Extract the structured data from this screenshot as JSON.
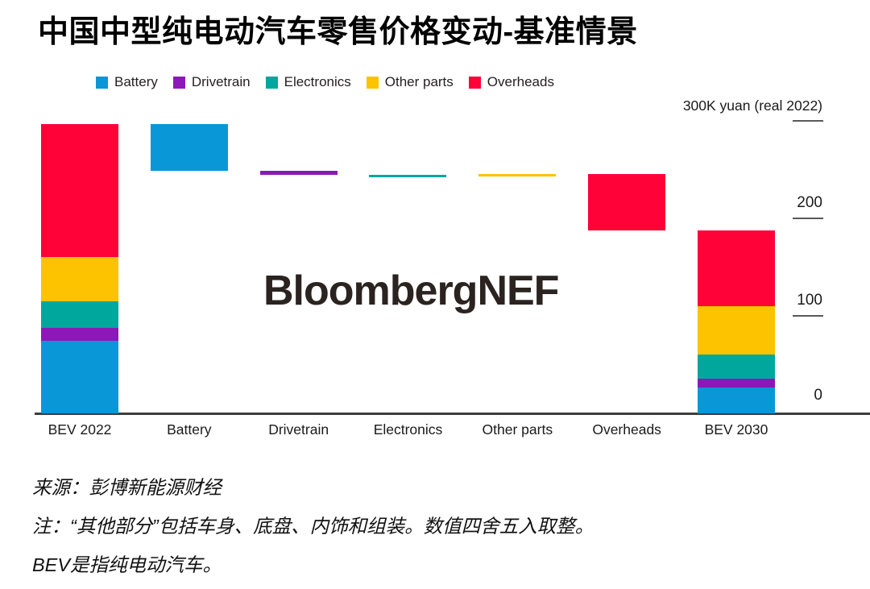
{
  "title": "中国中型纯电动汽车零售价格变动-基准情景",
  "watermark": "BloombergNEF",
  "colors": {
    "battery": "#0997d7",
    "drivetrain": "#8d18b8",
    "electronics": "#00a79d",
    "other_parts": "#fdc300",
    "overheads": "#ff0338"
  },
  "legend": [
    {
      "label": "Battery",
      "key": "battery"
    },
    {
      "label": "Drivetrain",
      "key": "drivetrain"
    },
    {
      "label": "Electronics",
      "key": "electronics"
    },
    {
      "label": "Other parts",
      "key": "other_parts"
    },
    {
      "label": "Overheads",
      "key": "overheads"
    }
  ],
  "chart_data": {
    "type": "waterfall",
    "unit": "K yuan (real 2022)",
    "ylim": [
      0,
      300
    ],
    "grid": false,
    "legend_position": "top",
    "stack_order": [
      "battery",
      "drivetrain",
      "electronics",
      "other_parts",
      "overheads"
    ],
    "yticks": [
      {
        "value": 300,
        "label": "300K yuan (real 2022)",
        "tick": true
      },
      {
        "value": 200,
        "label": "200",
        "tick": true
      },
      {
        "value": 100,
        "label": "100",
        "tick": true
      },
      {
        "value": 0,
        "label": "0",
        "tick": false
      }
    ],
    "categories": [
      "BEV 2022",
      "Battery",
      "Drivetrain",
      "Electronics",
      "Other parts",
      "Overheads",
      "BEV 2030"
    ],
    "bars": [
      {
        "name": "BEV 2022",
        "kind": "total",
        "total": 297,
        "segments": {
          "battery": 75,
          "drivetrain": 13,
          "electronics": 27,
          "other_parts": 46,
          "overheads": 136
        }
      },
      {
        "name": "Battery",
        "kind": "change",
        "key": "battery",
        "from": 297,
        "to": 249,
        "delta": -48
      },
      {
        "name": "Drivetrain",
        "kind": "change",
        "key": "drivetrain",
        "from": 249,
        "to": 245,
        "delta": -4
      },
      {
        "name": "Electronics",
        "kind": "change",
        "key": "electronics",
        "from": 245,
        "to": 243,
        "delta": -2
      },
      {
        "name": "Other parts",
        "kind": "change",
        "key": "other_parts",
        "from": 243,
        "to": 246,
        "delta": 3
      },
      {
        "name": "Overheads",
        "kind": "change",
        "key": "overheads",
        "from": 246,
        "to": 188,
        "delta": -58
      },
      {
        "name": "BEV 2030",
        "kind": "total",
        "total": 188,
        "segments": {
          "battery": 27,
          "drivetrain": 9,
          "electronics": 25,
          "other_parts": 49,
          "overheads": 78
        }
      }
    ]
  },
  "footer": {
    "source": "来源：彭博新能源财经",
    "note1": "注：“其他部分”包括车身、底盘、内饰和组装。数值四舍五入取整。",
    "note2": "BEV是指纯电动汽车。"
  }
}
